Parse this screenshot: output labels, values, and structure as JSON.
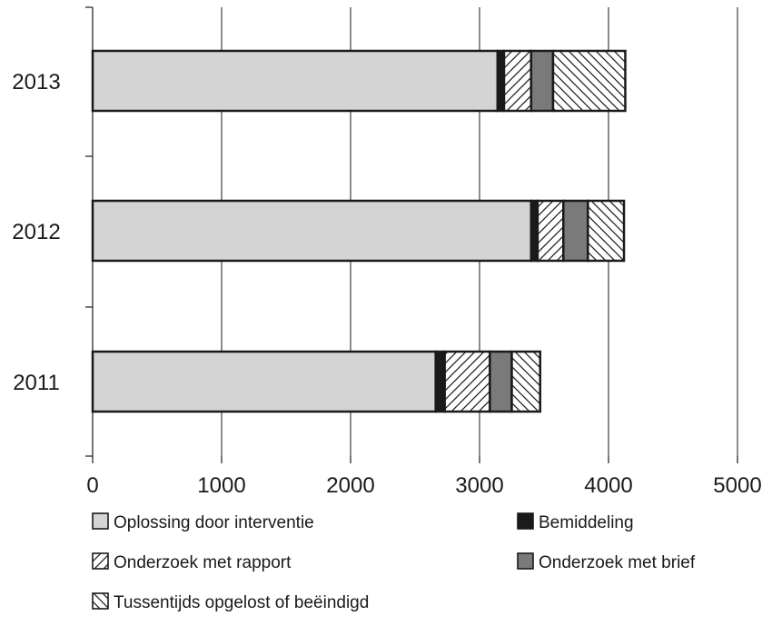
{
  "chart_data": {
    "type": "bar",
    "orientation": "horizontal",
    "stacked": true,
    "categories": [
      "2013",
      "2012",
      "2011"
    ],
    "series": [
      {
        "name": "Oplossing door interventie",
        "values": [
          3140,
          3400,
          2660
        ],
        "color": "#d4d4d4",
        "pattern": "solid"
      },
      {
        "name": "Bemiddeling",
        "values": [
          50,
          50,
          70
        ],
        "color": "#1a1a1a",
        "pattern": "solid"
      },
      {
        "name": "Onderzoek met rapport",
        "values": [
          210,
          200,
          350
        ],
        "color": "#ffffff",
        "pattern": "forward-hatch"
      },
      {
        "name": "Onderzoek met brief",
        "values": [
          170,
          190,
          170
        ],
        "color": "#7a7a7a",
        "pattern": "solid"
      },
      {
        "name": "Tussentijds opgelost of beëindigd",
        "values": [
          560,
          280,
          220
        ],
        "color": "#ffffff",
        "pattern": "backward-hatch"
      }
    ],
    "xlim": [
      0,
      5000
    ],
    "xticks": [
      "0",
      "1000",
      "2000",
      "3000",
      "4000",
      "5000"
    ],
    "grid": true,
    "legend_position": "bottom"
  }
}
